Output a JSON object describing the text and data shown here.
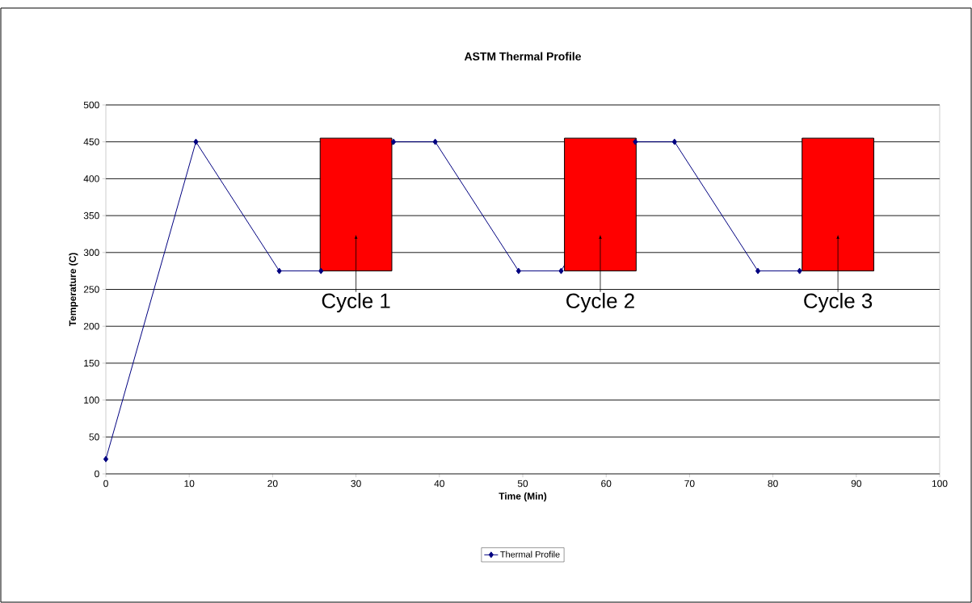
{
  "chart_data": {
    "type": "line",
    "title": "ASTM Thermal Profile",
    "xlabel": "Time (Min)",
    "ylabel": "Temperature (C)",
    "xlim": [
      0,
      100
    ],
    "xticks": [
      0,
      10,
      20,
      30,
      40,
      50,
      60,
      70,
      80,
      90,
      100
    ],
    "ylim": [
      0,
      500
    ],
    "yticks": [
      0,
      50,
      100,
      150,
      200,
      250,
      300,
      350,
      400,
      450,
      500
    ],
    "grid": "y",
    "legend": "bottom",
    "marker": "diamond",
    "line_style": "solid",
    "series": [
      {
        "name": "Thermal Profile",
        "color": "#000080",
        "x": [
          0,
          10.8,
          20.8,
          25.8,
          34.5,
          39.5,
          49.5,
          54.6,
          63.5,
          68.2,
          78.2,
          83.2
        ],
        "values": [
          20,
          450,
          275,
          275,
          450,
          450,
          275,
          275,
          450,
          450,
          275,
          275
        ]
      },
      {
        "type": "bar",
        "color": "#ff0000",
        "x": [
          30,
          59.3,
          87.8
        ],
        "base": [
          275,
          275,
          275
        ],
        "values": [
          180,
          180,
          180
        ]
      }
    ],
    "annotations": [
      "Cycle 1",
      "Cycle 2",
      "Cycle 3"
    ]
  }
}
